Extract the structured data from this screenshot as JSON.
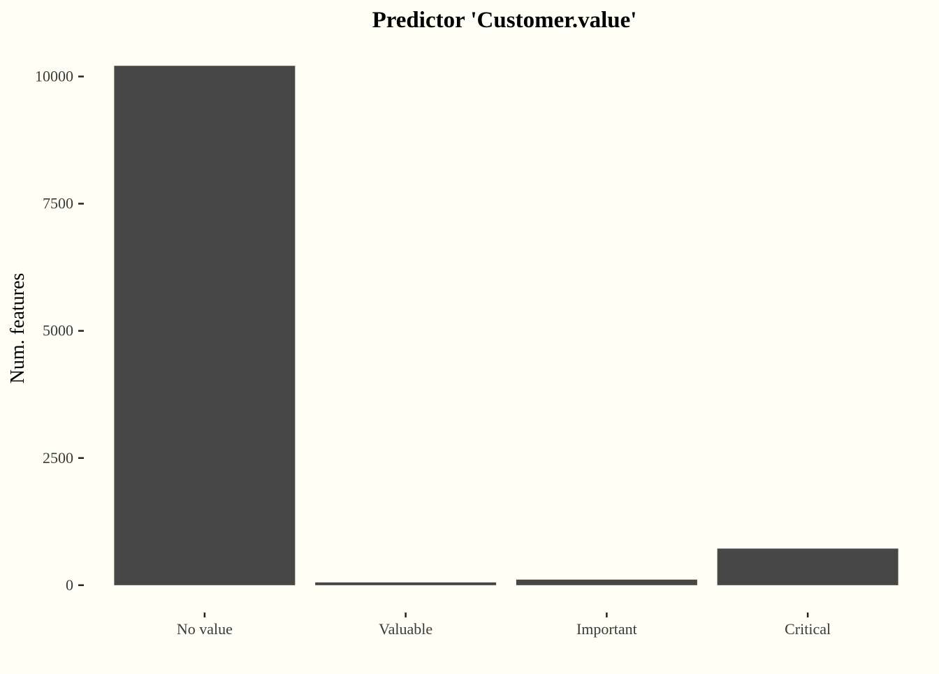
{
  "chart_data": {
    "type": "bar",
    "title": "Predictor 'Customer.value'",
    "xlabel": "",
    "ylabel": "Num. features",
    "categories": [
      "No value",
      "Valuable",
      "Important",
      "Critical"
    ],
    "values": [
      10210,
      55,
      110,
      720
    ],
    "ylim": [
      -620,
      10680
    ],
    "yticks": [
      0,
      2500,
      5000,
      7500,
      10000
    ],
    "ytick_labels": [
      "0",
      "2500",
      "5000",
      "7500",
      "10000"
    ],
    "grid": false,
    "legend": "none",
    "colors": {
      "bar": "#474747",
      "background": "#fffff5"
    }
  }
}
